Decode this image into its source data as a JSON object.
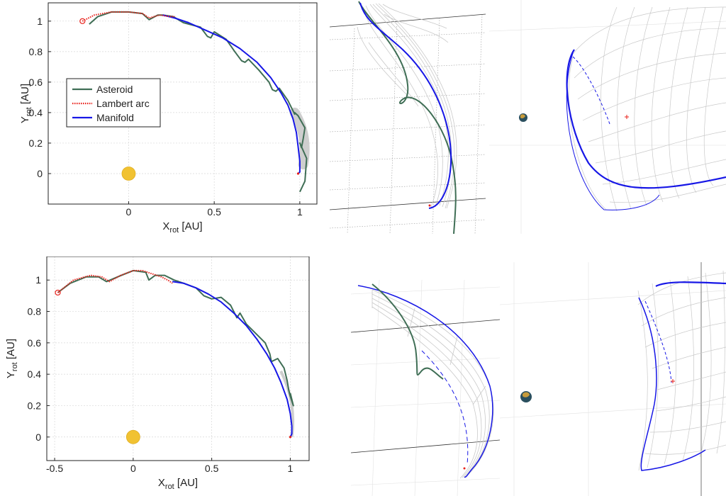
{
  "colors": {
    "asteroid": "#3f6e55",
    "lambert": "#e8201a",
    "manifold": "#1717e6",
    "tube": "#c9c9c9",
    "sun": "#f1c232",
    "grid": "#d7d7d7"
  },
  "chart_data": [
    {
      "type": "line",
      "xlabel": "X",
      "xlabel_sub": "rot",
      "xlabel_unit": " [AU]",
      "ylabel": "Y",
      "ylabel_sub": "rot",
      "ylabel_unit": " [AU]",
      "xlim": [
        -0.47,
        1.1
      ],
      "ylim": [
        -0.2,
        1.12
      ],
      "xticks": [
        0,
        0.5,
        1
      ],
      "xtick_labels": [
        "0",
        "0.5",
        "1"
      ],
      "yticks": [
        0,
        0.2,
        0.4,
        0.6,
        0.8,
        1
      ],
      "ytick_labels": [
        "0",
        "0.2",
        "0.4",
        "0.6",
        "0.8",
        "1"
      ],
      "grid": true,
      "legend": {
        "position": "center-left",
        "entries": [
          {
            "label": "Asteroid",
            "color": "#3f6e55",
            "style": "solid"
          },
          {
            "label": "Lambert arc",
            "color": "#e8201a",
            "style": "dotted"
          },
          {
            "label": "Manifold",
            "color": "#1717e6",
            "style": "solid"
          }
        ]
      },
      "sun": {
        "x": 0.0,
        "y": 0.0
      },
      "series": [
        {
          "name": "Asteroid",
          "x": [
            -0.23,
            -0.18,
            -0.1,
            0.0,
            0.08,
            0.1,
            0.12,
            0.17,
            0.2,
            0.26,
            0.32,
            0.42,
            0.46,
            0.48,
            0.5,
            0.57,
            0.62,
            0.66,
            0.68,
            0.7,
            0.76,
            0.82,
            0.84,
            0.86,
            0.88,
            0.93,
            0.97,
            0.97,
            0.99,
            1.03,
            1.02,
            1.01,
            1.0,
            1.04,
            1.03,
            1.0
          ],
          "y": [
            0.98,
            1.03,
            1.06,
            1.06,
            1.05,
            1.03,
            1.01,
            1.04,
            1.04,
            1.03,
            0.99,
            0.96,
            0.9,
            0.89,
            0.93,
            0.88,
            0.8,
            0.74,
            0.73,
            0.75,
            0.68,
            0.6,
            0.55,
            0.54,
            0.56,
            0.48,
            0.39,
            0.4,
            0.38,
            0.3,
            0.23,
            0.17,
            0.2,
            0.1,
            -0.05,
            -0.12
          ]
        },
        {
          "name": "Lambert arc",
          "x": [
            -0.27,
            -0.2,
            -0.1,
            0.0,
            0.08,
            0.12,
            0.18,
            0.24,
            0.27
          ],
          "y": [
            1.0,
            1.04,
            1.06,
            1.06,
            1.05,
            1.02,
            1.04,
            1.03,
            1.03
          ]
        },
        {
          "name": "Manifold",
          "x": [
            0.2,
            0.27,
            0.35,
            0.45,
            0.55,
            0.65,
            0.75,
            0.83,
            0.89,
            0.93,
            0.96,
            0.98,
            0.99,
            1.0,
            1.0,
            0.99
          ],
          "y": [
            1.04,
            1.02,
            0.99,
            0.94,
            0.89,
            0.82,
            0.73,
            0.63,
            0.53,
            0.45,
            0.36,
            0.27,
            0.18,
            0.08,
            0.01,
            0.0
          ]
        }
      ]
    },
    {
      "type": "line",
      "xlabel": "X",
      "xlabel_sub": "rot",
      "xlabel_unit": " [AU]",
      "ylabel": "Y",
      "ylabel_sub": "rot",
      "ylabel_unit": " [AU]",
      "xlim": [
        -0.55,
        1.12
      ],
      "ylim": [
        -0.15,
        1.15
      ],
      "xticks": [
        -0.5,
        0,
        0.5,
        1
      ],
      "xtick_labels": [
        "-0.5",
        "0",
        "0.5",
        "1"
      ],
      "yticks": [
        0,
        0.2,
        0.4,
        0.6,
        0.8,
        1
      ],
      "ytick_labels": [
        "0",
        "0.2",
        "0.4",
        "0.6",
        "0.8",
        "1"
      ],
      "grid": true,
      "sun": {
        "x": 0.0,
        "y": 0.0
      },
      "series": [
        {
          "name": "Asteroid",
          "x": [
            -0.48,
            -0.4,
            -0.3,
            -0.22,
            -0.17,
            -0.1,
            0.0,
            0.08,
            0.1,
            0.14,
            0.2,
            0.26,
            0.32,
            0.4,
            0.45,
            0.5,
            0.56,
            0.62,
            0.66,
            0.68,
            0.72,
            0.78,
            0.84,
            0.87,
            0.88,
            0.92,
            0.96,
            0.98,
            0.99,
            1.0,
            1.02,
            1.01,
            1.0
          ],
          "y": [
            0.92,
            0.98,
            1.02,
            1.02,
            0.99,
            1.02,
            1.06,
            1.05,
            1.0,
            1.03,
            1.03,
            1.0,
            0.98,
            0.95,
            0.9,
            0.88,
            0.89,
            0.84,
            0.76,
            0.79,
            0.72,
            0.66,
            0.6,
            0.53,
            0.48,
            0.5,
            0.44,
            0.36,
            0.3,
            0.26,
            0.2,
            0.24,
            0.28
          ]
        },
        {
          "name": "Lambert arc",
          "x": [
            -0.48,
            -0.38,
            -0.27,
            -0.2,
            -0.15,
            -0.08,
            0.0,
            0.06,
            0.12,
            0.18,
            0.22,
            0.25
          ],
          "y": [
            0.92,
            1.0,
            1.03,
            1.02,
            0.99,
            1.03,
            1.06,
            1.06,
            1.04,
            1.02,
            1.0,
            0.98
          ]
        },
        {
          "name": "Manifold",
          "x": [
            0.25,
            0.32,
            0.4,
            0.48,
            0.56,
            0.64,
            0.72,
            0.79,
            0.85,
            0.9,
            0.94,
            0.98,
            1.0,
            1.01,
            1.01,
            1.0
          ],
          "y": [
            0.99,
            0.98,
            0.95,
            0.91,
            0.86,
            0.79,
            0.71,
            0.62,
            0.53,
            0.44,
            0.35,
            0.24,
            0.15,
            0.07,
            0.02,
            0.0
          ]
        }
      ]
    }
  ]
}
